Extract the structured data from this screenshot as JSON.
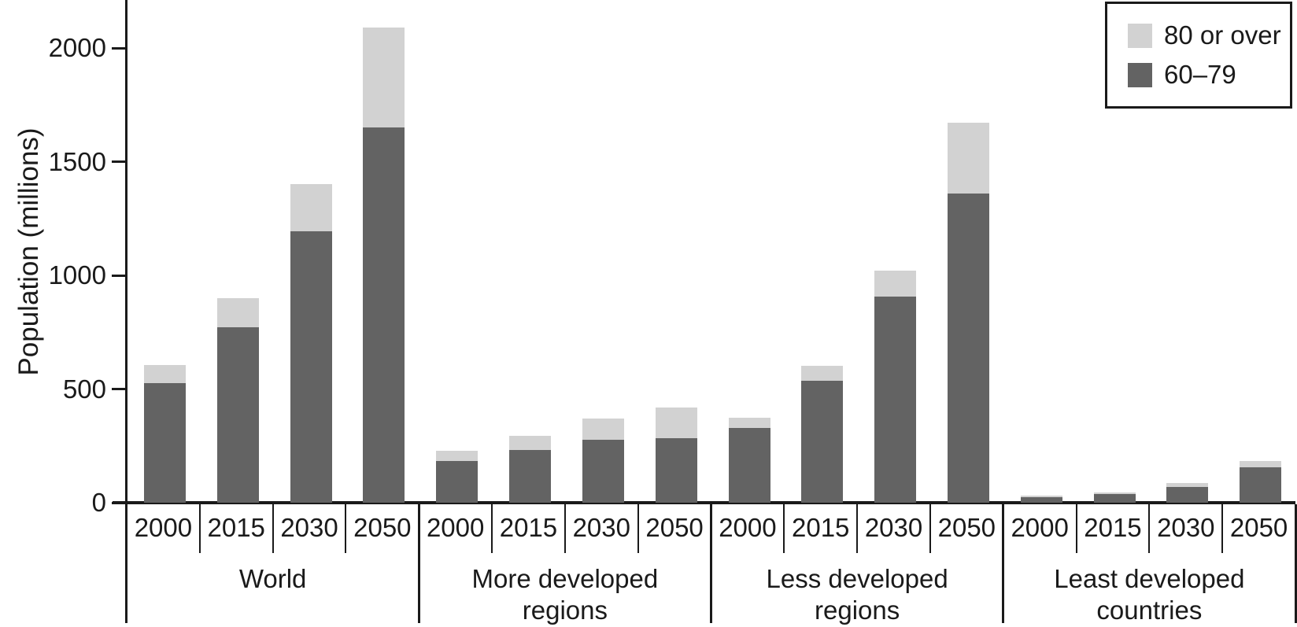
{
  "chart_data": {
    "type": "bar",
    "stacked": true,
    "title": "",
    "ylabel": "Population (millions)",
    "xlabel": "",
    "ylim": [
      0,
      2210
    ],
    "yticks": [
      0,
      500,
      1000,
      1500,
      2000
    ],
    "grid": false,
    "legend_position": "top-right",
    "legend": [
      {
        "label": "80 or over",
        "color": "#d2d2d2"
      },
      {
        "label": "60–79",
        "color": "#636363"
      }
    ],
    "colors": {
      "series_60_79": "#636363",
      "series_80_over": "#d2d2d2",
      "axis": "#1a1a1a",
      "background": "#ffffff"
    },
    "years": [
      "2000",
      "2015",
      "2030",
      "2050"
    ],
    "groups": [
      {
        "label_lines": [
          "World"
        ],
        "values_60_79": [
          527,
          771,
          1194,
          1652
        ],
        "values_80_over": [
          78,
          129,
          209,
          438
        ],
        "totals_60_plus": [
          605,
          900,
          1403,
          2090
        ]
      },
      {
        "label_lines": [
          "More developed",
          "regions"
        ],
        "values_60_79": [
          182,
          233,
          277,
          285
        ],
        "values_80_over": [
          45,
          62,
          92,
          132
        ],
        "totals_60_plus": [
          227,
          295,
          369,
          417
        ]
      },
      {
        "label_lines": [
          "Less developed",
          "regions"
        ],
        "values_60_79": [
          329,
          535,
          907,
          1360
        ],
        "values_80_over": [
          43,
          67,
          113,
          310
        ],
        "totals_60_plus": [
          372,
          602,
          1020,
          1670
        ]
      },
      {
        "label_lines": [
          "Least developed",
          "countries"
        ],
        "values_60_79": [
          25,
          38,
          70,
          154
        ],
        "values_80_over": [
          6,
          8,
          15,
          28
        ],
        "totals_60_plus": [
          31,
          46,
          85,
          182
        ]
      }
    ]
  }
}
